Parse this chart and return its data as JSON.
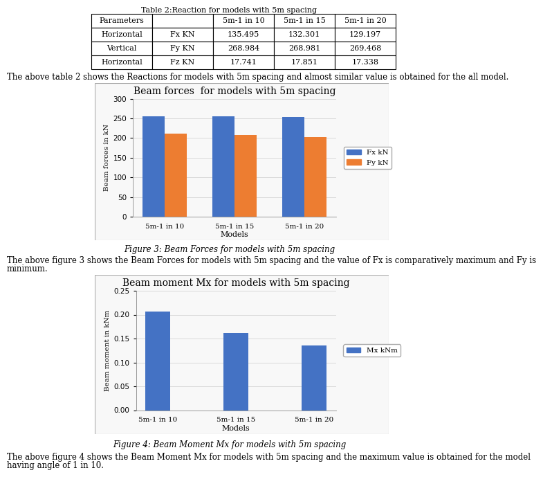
{
  "table_title": "Table 2:Reaction for models with 5m spacing",
  "table_headers": [
    "Parameters",
    "",
    "5m-1 in 10",
    "5m-1 in 15",
    "5m-1 in 20"
  ],
  "table_rows": [
    [
      "Horizontal",
      "Fx KN",
      "135.495",
      "132.301",
      "129.197"
    ],
    [
      "Vertical",
      "Fy KN",
      "268.984",
      "268.981",
      "269.468"
    ],
    [
      "Horizontal",
      "Fz KN",
      "17.741",
      "17.851",
      "17.338"
    ]
  ],
  "above_table_text": "The above table 2 shows the Reactions for models with 5m spacing and almost similar value is obtained for the all model.",
  "chart1_title": "Beam forces  for models with 5m spacing",
  "chart1_models": [
    "5m-1 in 10",
    "5m-1 in 15",
    "5m-1 in 20"
  ],
  "chart1_fx": [
    255,
    255,
    254
  ],
  "chart1_fy": [
    212,
    208,
    203
  ],
  "chart1_ylabel": "Beam forces in kN",
  "chart1_xlabel": "Models",
  "chart1_ylim": [
    0,
    300
  ],
  "chart1_yticks": [
    0,
    50,
    100,
    150,
    200,
    250,
    300
  ],
  "chart1_bar_color_fx": "#4472C4",
  "chart1_bar_color_fy": "#ED7D31",
  "chart1_legend": [
    "Fx kN",
    "Fy kN"
  ],
  "chart1_caption": "Figure 3: Beam Forces for models with 5m spacing",
  "between_charts_text1": "The above figure 3 shows the Beam Forces for models with 5m spacing and the value of Fx is comparatively maximum and Fy is",
  "between_charts_text2": "minimum.",
  "chart2_title": "Beam moment Mx for models with 5m spacing",
  "chart2_models": [
    "5m-1 in 10",
    "5m-1 in 15",
    "5m-1 in 20"
  ],
  "chart2_mx": [
    0.207,
    0.162,
    0.135
  ],
  "chart2_ylabel": "Beam moment in kNm",
  "chart2_xlabel": "Models",
  "chart2_ylim": [
    0,
    0.25
  ],
  "chart2_yticks": [
    0,
    0.05,
    0.1,
    0.15,
    0.2,
    0.25
  ],
  "chart2_bar_color": "#4472C4",
  "chart2_legend": [
    "Mx kNm"
  ],
  "chart2_caption": "Figure 4: Beam Moment Mx for models with 5m spacing",
  "below_chart2_text1": "The above figure 4 shows the Beam Moment Mx for models with 5m spacing and the maximum value is obtained for the model",
  "below_chart2_text2": "having angle of 1 in 10.",
  "bg_color": "#ffffff",
  "text_color": "#000000",
  "chart_bg": "#f5f5f5"
}
